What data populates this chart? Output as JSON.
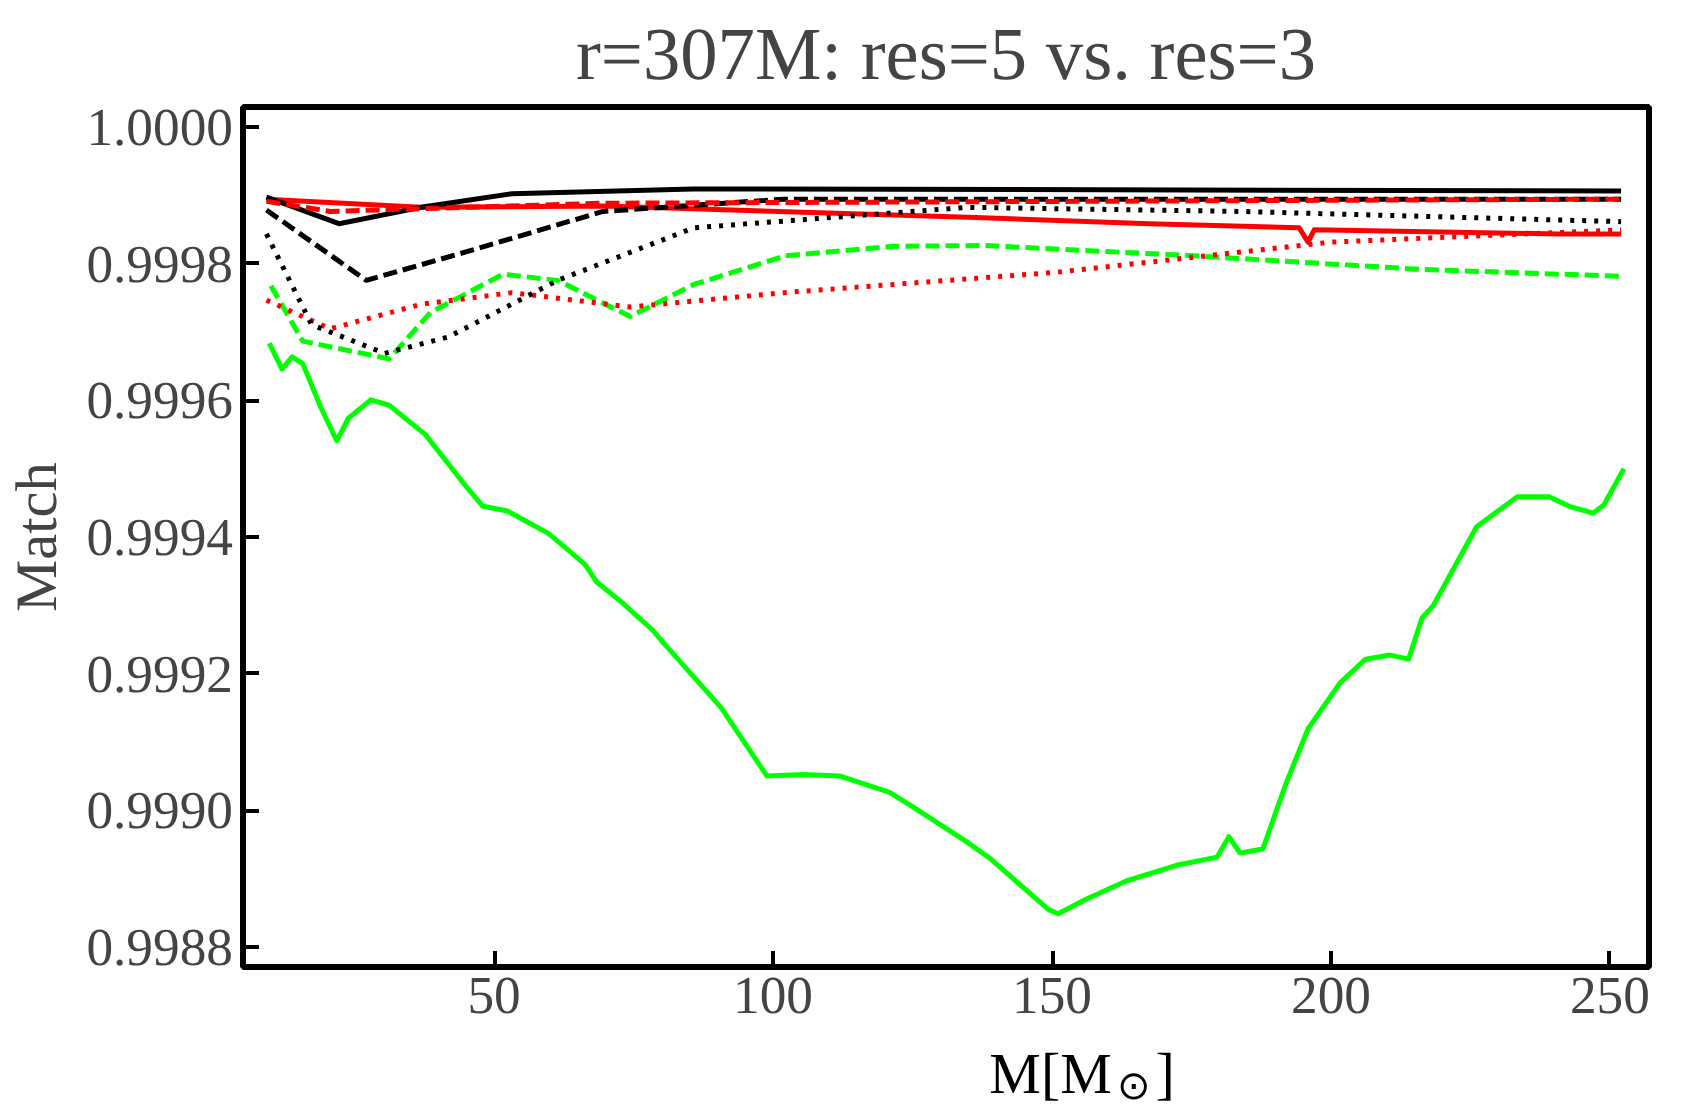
{
  "chart_data": {
    "type": "line",
    "title": "r=307M: res=5 vs. res=3",
    "xlabel": "M[M$_{⊙}$]",
    "ylabel": "Match",
    "xlim": [
      5,
      257
    ],
    "ylim": [
      0.99877,
      1.00003
    ],
    "xticks": [
      50,
      100,
      150,
      200,
      250
    ],
    "yticks": [
      {
        "value": 0.9988,
        "label": "0.9988"
      },
      {
        "value": 0.999,
        "label": "0.9990"
      },
      {
        "value": 0.9992,
        "label": "0.9992"
      },
      {
        "value": 0.9994,
        "label": "0.9994"
      },
      {
        "value": 0.9996,
        "label": "0.9996"
      },
      {
        "value": 0.9998,
        "label": "0.9998"
      },
      {
        "value": 1.0,
        "label": "1.0000"
      }
    ],
    "grid": false,
    "marker": "none",
    "series": [
      {
        "color": "#00ff00",
        "line_style": "solid",
        "x": [
          9.7,
          12.0,
          13.8,
          15.7,
          19.0,
          21.8,
          23.9,
          27.9,
          31.2,
          37.7,
          45.1,
          48.0,
          52.4,
          59.8,
          66.3,
          68.4,
          72.8,
          78.5,
          81.0,
          90.7,
          98.9,
          105.4,
          111.9,
          120.9,
          125.0,
          134.8,
          138.9,
          149.4,
          151.1,
          156.0,
          163.3,
          172.3,
          179.6,
          181.7,
          183.7,
          187.8,
          191.9,
          195.9,
          201.6,
          206.2,
          210.6,
          213.9,
          216.3,
          218.3,
          226.1,
          233.4,
          239.1,
          242.7,
          247.0,
          248.9,
          252.5
        ],
        "values": [
          0.999684,
          0.999646,
          0.999664,
          0.999654,
          0.999589,
          0.999541,
          0.999574,
          0.999601,
          0.999593,
          0.99955,
          0.999473,
          0.999445,
          0.999438,
          0.999405,
          0.99936,
          0.999334,
          0.999305,
          0.999263,
          0.999239,
          0.99915,
          0.99905,
          0.999052,
          0.99905,
          0.999026,
          0.999005,
          0.998953,
          0.998929,
          0.998854,
          0.998848,
          0.998869,
          0.998896,
          0.998919,
          0.998931,
          0.998961,
          0.998937,
          0.998943,
          0.999038,
          0.999119,
          0.999186,
          0.999221,
          0.999227,
          0.999221,
          0.999281,
          0.999299,
          0.999415,
          0.999459,
          0.999459,
          0.999445,
          0.999435,
          0.999447,
          0.9995
        ]
      },
      {
        "color": "#00ff00",
        "line_style": "dashed",
        "x": [
          10,
          15.7,
          31.2,
          38.6,
          51.6,
          61.4,
          74.4,
          85.8,
          102.2,
          121.7,
          138,
          175.5,
          216.3,
          252
        ],
        "values": [
          0.999768,
          0.999687,
          0.999661,
          0.999729,
          0.999785,
          0.999776,
          0.999723,
          0.99977,
          0.999812,
          0.999826,
          0.999827,
          0.999812,
          0.999792,
          0.999782
        ]
      },
      {
        "color": "#ff0000",
        "line_style": "dotted",
        "x": [
          9.2,
          20.6,
          36.9,
          53.2,
          74.4,
          102,
          151,
          200,
          252
        ],
        "values": [
          0.999747,
          0.999705,
          0.999741,
          0.999758,
          0.999737,
          0.999758,
          0.999788,
          0.999832,
          0.99985
        ]
      },
      {
        "color": "#ff0000",
        "line_style": "solid",
        "x": [
          9.2,
          36.9,
          69.5,
          136.4,
          167.4,
          194.3,
          195.9,
          197,
          240.8,
          252
        ],
        "values": [
          0.999895,
          0.999883,
          0.999885,
          0.999868,
          0.999859,
          0.999853,
          0.999832,
          0.99985,
          0.999844,
          0.999844
        ]
      },
      {
        "color": "#000000",
        "line_style": "dotted",
        "x": [
          9.2,
          17.3,
          30.4,
          41.8,
          61.4,
          85.8,
          134.8,
          183.7,
          252
        ],
        "values": [
          0.999844,
          0.999711,
          0.999669,
          0.999693,
          0.999776,
          0.999853,
          0.999883,
          0.999877,
          0.999862
        ]
      },
      {
        "color": "#000000",
        "line_style": "dashed",
        "x": [
          9.2,
          27.1,
          45.1,
          69.5,
          102,
          252
        ],
        "values": [
          0.999879,
          0.999776,
          0.999818,
          0.999877,
          0.999895,
          0.999895
        ]
      },
      {
        "color": "#000000",
        "line_style": "solid",
        "x": [
          9.2,
          22.2,
          36.9,
          53.2,
          85.7,
          252
        ],
        "values": [
          0.999898,
          0.999859,
          0.999883,
          0.999903,
          0.99991,
          0.999907
        ]
      },
      {
        "color": "#ff0000",
        "line_style": "dashed",
        "x": [
          9.2,
          20.6,
          69.5,
          252
        ],
        "values": [
          0.999892,
          0.999877,
          0.999889,
          0.999895
        ]
      }
    ]
  }
}
